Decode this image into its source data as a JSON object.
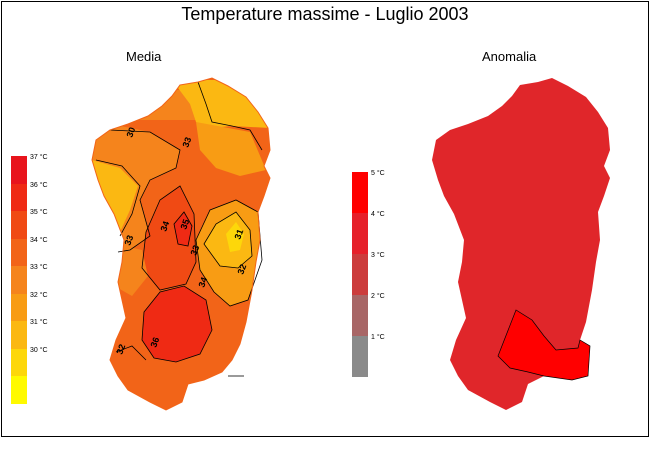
{
  "title": "Temperature massime - Luglio 2003",
  "panels": {
    "media": {
      "label": "Media"
    },
    "anomalia": {
      "label": "Anomalia"
    }
  },
  "legend_media": {
    "items": [
      {
        "label": "37 °C",
        "color": "#e8141c"
      },
      {
        "label": "36 °C",
        "color": "#ef2a14"
      },
      {
        "label": "35 °C",
        "color": "#f04a14"
      },
      {
        "label": "34 °C",
        "color": "#f26418"
      },
      {
        "label": "33 °C",
        "color": "#f5841c"
      },
      {
        "label": "32 °C",
        "color": "#f89c14"
      },
      {
        "label": "31 °C",
        "color": "#fbb812"
      },
      {
        "label": "30 °C",
        "color": "#fdd70a"
      },
      {
        "label": "",
        "color": "#fffa00"
      }
    ]
  },
  "legend_anomalia": {
    "items": [
      {
        "label": "5 °C",
        "color": "#ff0000"
      },
      {
        "label": "4 °C",
        "color": "#e6202a"
      },
      {
        "label": "3 °C",
        "color": "#cc3c3c"
      },
      {
        "label": "2 °C",
        "color": "#a86666"
      },
      {
        "label": "1 °C",
        "color": "#8a8a8a"
      }
    ]
  },
  "contour_labels": [
    "30",
    "33",
    "33",
    "34",
    "33",
    "31",
    "32",
    "34",
    "35",
    "36",
    "32"
  ],
  "colors": {
    "anomaly_main": "#e0262a",
    "anomaly_high": "#ff0000",
    "media_base": "#f26418"
  }
}
